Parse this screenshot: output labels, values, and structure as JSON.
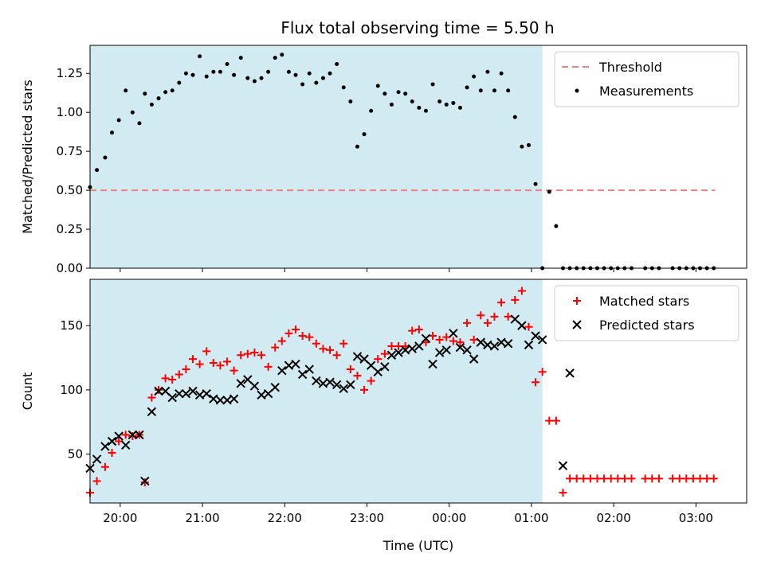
{
  "figure": {
    "title": "Flux total observing time = 5.50 h"
  },
  "chart_data": [
    {
      "type": "scatter",
      "panel": "top",
      "title": "Flux total observing time = 5.50 h",
      "xlabel": "",
      "ylabel": "Matched/Predicted stars",
      "x_unit": "hours since 00:00 UTC of first night (axis shows clock time)",
      "xlim": [
        "19:38",
        "03:37"
      ],
      "ylim": [
        0,
        1.43
      ],
      "yticks": [
        "0.00",
        "0.25",
        "0.50",
        "0.75",
        "1.00",
        "1.25"
      ],
      "grid": false,
      "legend_position": "upper right",
      "shaded_region": {
        "from": "19:38",
        "to": "01:08",
        "color": "#add8e6"
      },
      "series": [
        {
          "name": "Threshold",
          "kind": "line",
          "style": "dashed",
          "color": "#f08080",
          "x": [
            "19:38",
            "03:14"
          ],
          "y": [
            0.5,
            0.5
          ]
        },
        {
          "name": "Measurements",
          "kind": "scatter",
          "color": "#000000",
          "x": [
            "19:38",
            "19:43",
            "19:49",
            "19:54",
            "19:59",
            "20:04",
            "20:09",
            "20:14",
            "20:18",
            "20:23",
            "20:28",
            "20:33",
            "20:38",
            "20:43",
            "20:48",
            "20:53",
            "20:58",
            "21:03",
            "21:08",
            "21:13",
            "21:18",
            "21:23",
            "21:28",
            "21:33",
            "21:38",
            "21:43",
            "21:48",
            "21:53",
            "21:58",
            "22:03",
            "22:08",
            "22:13",
            "22:18",
            "22:23",
            "22:28",
            "22:33",
            "22:38",
            "22:43",
            "22:48",
            "22:53",
            "22:58",
            "23:03",
            "23:08",
            "23:13",
            "23:18",
            "23:23",
            "23:28",
            "23:33",
            "23:38",
            "23:43",
            "23:48",
            "23:53",
            "23:58",
            "00:03",
            "00:08",
            "00:13",
            "00:18",
            "00:23",
            "00:28",
            "00:33",
            "00:38",
            "00:43",
            "00:48",
            "00:53",
            "00:58",
            "01:03",
            "01:08",
            "01:13",
            "01:18",
            "01:23",
            "01:28",
            "01:33",
            "01:38",
            "01:43",
            "01:48",
            "01:53",
            "01:58",
            "02:03",
            "02:08",
            "02:13",
            "02:23",
            "02:28",
            "02:33",
            "02:43",
            "02:48",
            "02:53",
            "02:58",
            "03:03",
            "03:08",
            "03:13"
          ],
          "y": [
            0.52,
            0.63,
            0.71,
            0.87,
            0.95,
            1.14,
            1.0,
            0.93,
            1.12,
            1.05,
            1.09,
            1.13,
            1.14,
            1.19,
            1.25,
            1.24,
            1.36,
            1.23,
            1.26,
            1.26,
            1.31,
            1.24,
            1.35,
            1.22,
            1.2,
            1.22,
            1.26,
            1.35,
            1.37,
            1.26,
            1.24,
            1.18,
            1.25,
            1.19,
            1.22,
            1.25,
            1.31,
            1.16,
            1.07,
            0.78,
            0.86,
            1.01,
            1.17,
            1.12,
            1.05,
            1.13,
            1.12,
            1.07,
            1.03,
            1.01,
            1.18,
            1.07,
            1.05,
            1.06,
            1.03,
            1.16,
            1.23,
            1.14,
            1.26,
            1.14,
            1.25,
            1.14,
            0.97,
            0.78,
            0.79,
            0.54,
            0.0,
            0.49,
            0.27,
            0.0,
            0.0,
            0.0,
            0.0,
            0.0,
            0.0,
            0.0,
            0.0,
            0.0,
            0.0,
            0.0,
            0.0,
            0.0,
            0.0,
            0.0,
            0.0,
            0.0,
            0.0,
            0.0,
            0.0,
            0.0
          ]
        }
      ]
    },
    {
      "type": "scatter",
      "panel": "bottom",
      "title": "",
      "xlabel": "Time (UTC)",
      "ylabel": "Count",
      "x_unit": "hours since 00:00 UTC of first night (axis shows clock time)",
      "xlim": [
        "19:38",
        "03:37"
      ],
      "ylim": [
        12,
        186
      ],
      "xtick_labels": [
        "20:00",
        "21:00",
        "22:00",
        "23:00",
        "00:00",
        "01:00",
        "02:00",
        "03:00"
      ],
      "yticks": [
        "50",
        "100",
        "150"
      ],
      "grid": false,
      "legend_position": "upper right",
      "shaded_region": {
        "from": "19:38",
        "to": "01:08",
        "color": "#add8e6"
      },
      "series": [
        {
          "name": "Matched stars",
          "marker": "+",
          "color": "#ff0000",
          "x": [
            "19:38",
            "19:43",
            "19:49",
            "19:54",
            "19:59",
            "20:04",
            "20:09",
            "20:14",
            "20:18",
            "20:23",
            "20:28",
            "20:33",
            "20:38",
            "20:43",
            "20:48",
            "20:53",
            "20:58",
            "21:03",
            "21:08",
            "21:13",
            "21:18",
            "21:23",
            "21:28",
            "21:33",
            "21:38",
            "21:43",
            "21:48",
            "21:53",
            "21:58",
            "22:03",
            "22:08",
            "22:13",
            "22:18",
            "22:23",
            "22:28",
            "22:33",
            "22:38",
            "22:43",
            "22:48",
            "22:53",
            "22:58",
            "23:03",
            "23:08",
            "23:13",
            "23:18",
            "23:23",
            "23:28",
            "23:33",
            "23:38",
            "23:43",
            "23:48",
            "23:53",
            "23:58",
            "00:03",
            "00:08",
            "00:13",
            "00:18",
            "00:23",
            "00:28",
            "00:33",
            "00:38",
            "00:43",
            "00:48",
            "00:53",
            "00:58",
            "01:03",
            "01:08",
            "01:13",
            "01:18",
            "01:23",
            "01:28",
            "01:33",
            "01:38",
            "01:43",
            "01:48",
            "01:53",
            "01:58",
            "02:03",
            "02:08",
            "02:13",
            "02:23",
            "02:28",
            "02:33",
            "02:43",
            "02:48",
            "02:53",
            "02:58",
            "03:03",
            "03:08",
            "03:13"
          ],
          "y": [
            20,
            29,
            40,
            51,
            60,
            65,
            64,
            65,
            28,
            94,
            100,
            109,
            108,
            112,
            116,
            124,
            120,
            130,
            121,
            119,
            122,
            115,
            127,
            128,
            129,
            127,
            118,
            133,
            138,
            144,
            147,
            142,
            141,
            136,
            132,
            131,
            127,
            136,
            116,
            111,
            100,
            107,
            124,
            128,
            134,
            134,
            134,
            146,
            147,
            137,
            142,
            139,
            141,
            138,
            137,
            152,
            139,
            158,
            152,
            157,
            168,
            157,
            170,
            177,
            149,
            106,
            114,
            76,
            76,
            20,
            31,
            31,
            31,
            31,
            31,
            31,
            31,
            31,
            31,
            31,
            31,
            31,
            31,
            31,
            31,
            31,
            31,
            31,
            31,
            31
          ]
        },
        {
          "name": "Predicted stars",
          "marker": "x",
          "color": "#000000",
          "x": [
            "19:38",
            "19:43",
            "19:49",
            "19:54",
            "19:59",
            "20:04",
            "20:09",
            "20:14",
            "20:18",
            "20:23",
            "20:28",
            "20:33",
            "20:38",
            "20:43",
            "20:48",
            "20:53",
            "20:58",
            "21:03",
            "21:08",
            "21:13",
            "21:18",
            "21:23",
            "21:28",
            "21:33",
            "21:38",
            "21:43",
            "21:48",
            "21:53",
            "21:58",
            "22:03",
            "22:08",
            "22:13",
            "22:18",
            "22:23",
            "22:28",
            "22:33",
            "22:38",
            "22:43",
            "22:48",
            "22:53",
            "22:58",
            "23:03",
            "23:08",
            "23:13",
            "23:18",
            "23:23",
            "23:28",
            "23:33",
            "23:38",
            "23:43",
            "23:48",
            "23:53",
            "23:58",
            "00:03",
            "00:08",
            "00:13",
            "00:18",
            "00:23",
            "00:28",
            "00:33",
            "00:38",
            "00:43",
            "00:48",
            "00:53",
            "00:58",
            "01:03",
            "01:08",
            "01:23",
            "01:28"
          ],
          "y": [
            39,
            46,
            56,
            60,
            64,
            57,
            65,
            65,
            29,
            83,
            99,
            99,
            94,
            97,
            97,
            99,
            96,
            97,
            93,
            92,
            92,
            93,
            105,
            108,
            103,
            96,
            97,
            102,
            115,
            119,
            120,
            112,
            116,
            107,
            105,
            106,
            104,
            101,
            104,
            126,
            124,
            119,
            114,
            118,
            127,
            129,
            131,
            132,
            134,
            140,
            120,
            129,
            131,
            144,
            133,
            131,
            124,
            137,
            135,
            134,
            137,
            136,
            155,
            150,
            135,
            142,
            139,
            41,
            113
          ]
        }
      ]
    }
  ]
}
